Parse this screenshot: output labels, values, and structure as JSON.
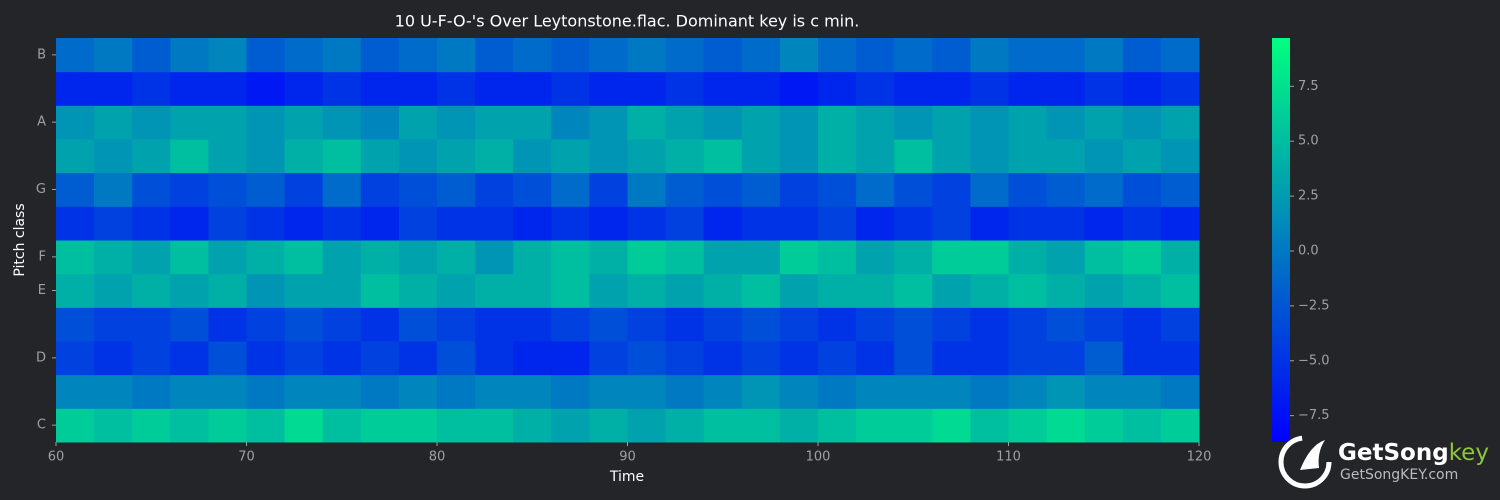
{
  "chart_data": {
    "type": "heatmap",
    "title": "10 U-F-O-'s Over Leytonstone.flac. Dominant key is c min.",
    "xlabel": "Time",
    "ylabel": "Pitch class",
    "categories": [
      "C",
      null,
      "D",
      null,
      "E",
      "F",
      null,
      "G",
      null,
      "A",
      null,
      "B"
    ],
    "x": [
      61,
      63,
      65,
      67,
      69,
      71,
      73,
      75,
      77,
      79,
      81,
      83,
      85,
      87,
      89,
      91,
      93,
      95,
      97,
      99,
      101,
      103,
      105,
      107,
      109,
      111,
      113,
      115,
      117,
      119
    ],
    "xlim": [
      60,
      120
    ],
    "xticks": [
      60,
      70,
      80,
      90,
      100,
      110,
      120
    ],
    "zlim": [
      -8.7,
      9.7
    ],
    "colormap": [
      "#0000ff",
      "#00ff80"
    ],
    "cbticks": [
      {
        "value": -7.5,
        "label": "−7.5"
      },
      {
        "value": -5,
        "label": "−5.0"
      },
      {
        "value": -2.5,
        "label": "−2.5"
      },
      {
        "value": 0,
        "label": "0.0"
      },
      2.5,
      {
        "value": 5,
        "label": "5.0"
      },
      7.5
    ],
    "z": [
      [
        6,
        5,
        6,
        5,
        6,
        5,
        7,
        5,
        6,
        6,
        5,
        5,
        4,
        3,
        4,
        3,
        4,
        5,
        5,
        4,
        5,
        6,
        6,
        7,
        5,
        6,
        7,
        6,
        5,
        6
      ],
      [
        1,
        1,
        0,
        1,
        1,
        0,
        1,
        1,
        0,
        1,
        0,
        1,
        1,
        0,
        1,
        1,
        0,
        1,
        2,
        1,
        0,
        1,
        1,
        1,
        0,
        1,
        2,
        1,
        1,
        0
      ],
      [
        -4,
        -5,
        -4,
        -5,
        -3,
        -5,
        -4,
        -5,
        -4,
        -5,
        -3,
        -5,
        -6,
        -6,
        -4,
        -3,
        -4,
        -5,
        -4,
        -5,
        -4,
        -5,
        -3,
        -5,
        -5,
        -4,
        -4,
        -2,
        -5,
        -5
      ],
      [
        -3,
        -4,
        -4,
        -3,
        -5,
        -4,
        -3,
        -4,
        -5,
        -3,
        -4,
        -5,
        -5,
        -4,
        -3,
        -4,
        -5,
        -4,
        -3,
        -4,
        -5,
        -4,
        -3,
        -4,
        -5,
        -4,
        -3,
        -4,
        -5,
        -4
      ],
      [
        4,
        3,
        4,
        3,
        4,
        2,
        3,
        3,
        5,
        4,
        3,
        4,
        4,
        5,
        3,
        4,
        3,
        4,
        5,
        3,
        4,
        4,
        5,
        3,
        4,
        5,
        4,
        3,
        4,
        5
      ],
      [
        5,
        4,
        3,
        5,
        3,
        4,
        5,
        3,
        4,
        3,
        4,
        2,
        4,
        5,
        4,
        6,
        5,
        3,
        3,
        6,
        5,
        3,
        4,
        6,
        6,
        4,
        3,
        5,
        6,
        4
      ],
      [
        -5,
        -4,
        -5,
        -6,
        -4,
        -5,
        -6,
        -5,
        -6,
        -4,
        -5,
        -5,
        -6,
        -5,
        -6,
        -5,
        -4,
        -6,
        -5,
        -5,
        -4,
        -6,
        -5,
        -4,
        -6,
        -5,
        -5,
        -6,
        -5,
        -6
      ],
      [
        -2,
        0,
        -3,
        -4,
        -3,
        -2,
        -4,
        -1,
        -4,
        -3,
        -2,
        -4,
        -3,
        -1,
        -4,
        0,
        -2,
        -3,
        -2,
        -4,
        -3,
        -1,
        -3,
        -4,
        -1,
        -3,
        -2,
        -1,
        -3,
        -2
      ],
      [
        3,
        2,
        3,
        5,
        3,
        2,
        4,
        5,
        3,
        2,
        3,
        4,
        2,
        3,
        2,
        3,
        4,
        5,
        3,
        2,
        4,
        3,
        5,
        3,
        2,
        3,
        3,
        2,
        3,
        2
      ],
      [
        2,
        3,
        2,
        3,
        3,
        2,
        3,
        2,
        1,
        3,
        2,
        3,
        3,
        1,
        2,
        4,
        3,
        2,
        3,
        2,
        4,
        3,
        2,
        3,
        2,
        3,
        2,
        3,
        2,
        3
      ],
      [
        -6,
        -6,
        -5,
        -6,
        -6,
        -7,
        -6,
        -5,
        -6,
        -6,
        -5,
        -6,
        -6,
        -5,
        -6,
        -6,
        -5,
        -6,
        -6,
        -7,
        -6,
        -5,
        -6,
        -6,
        -5,
        -6,
        -6,
        -5,
        -6,
        -5
      ],
      [
        -1,
        0,
        -2,
        0,
        1,
        -2,
        -1,
        0,
        -2,
        -1,
        0,
        -2,
        -1,
        -2,
        -1,
        0,
        -1,
        -2,
        -1,
        1,
        -1,
        -2,
        -1,
        -2,
        0,
        -1,
        -1,
        0,
        -2,
        -1
      ]
    ]
  },
  "watermark": {
    "brand": "GetSong",
    "brand_accent": "key",
    "url": "GetSongKEY.com"
  }
}
